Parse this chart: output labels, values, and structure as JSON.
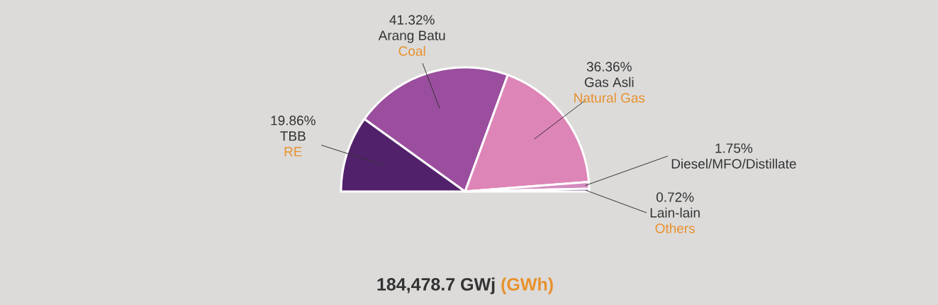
{
  "chart_data": {
    "type": "pie",
    "title": "184,478.7 GWj",
    "subtitle": "(GWh)",
    "categories": [
      "TBB",
      "Arang Batu",
      "Gas Asli",
      "Diesel/MFO/Distillate",
      "Lain-lain"
    ],
    "values": [
      19.86,
      41.32,
      36.36,
      1.75,
      0.72
    ],
    "colors": [
      "#51226b",
      "#9b4e9e",
      "#de85b7",
      "#d48bc0",
      "#7b3d9b"
    ],
    "value_labels": [
      "19.86%",
      "41.32%",
      "36.36%",
      "1.75%",
      "0.72%"
    ],
    "annotations": [
      {
        "text": "RE",
        "x": "TBB"
      },
      {
        "text": "Coal",
        "x": "Arang Batu"
      },
      {
        "text": "Natural Gas",
        "x": "Gas Asli"
      },
      {
        "text": "Others",
        "x": "Lain-lain"
      }
    ]
  }
}
